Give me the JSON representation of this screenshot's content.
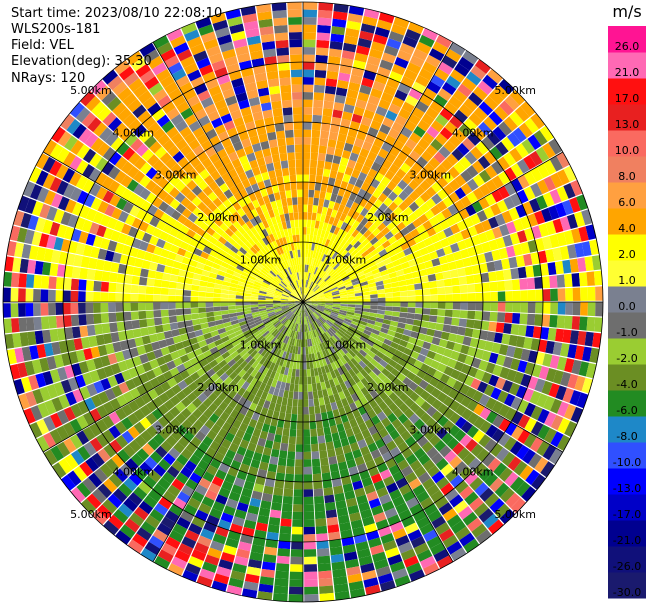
{
  "header": {
    "start_time": "Start time: 2023/08/10 22:08:10",
    "instrument": "WLS200s-181",
    "field": "Field: VEL",
    "elevation": "Elevation(deg): 35.30",
    "nrays": "NRays: 120"
  },
  "chart_data": {
    "type": "heatmap",
    "projection": "polar-ppi",
    "range_ring_labels": [
      "1.00km",
      "2.00km",
      "3.00km",
      "4.00km",
      "5.00km"
    ],
    "range_rings_km": [
      1,
      2,
      3,
      4,
      5
    ],
    "max_range_km": 5.0,
    "spoke_step_deg": 30,
    "colorbar": {
      "unit": "m/s",
      "boundaries": [
        -30.0,
        -26.0,
        -21.0,
        -17.0,
        -13.0,
        -10.0,
        -8.0,
        -6.0,
        -4.0,
        -2.0,
        -1.0,
        0.0,
        1.0,
        2.0,
        4.0,
        6.0,
        8.0,
        10.0,
        13.0,
        17.0,
        21.0,
        26.0
      ],
      "tick_labels": [
        "-30.0",
        "-26.0",
        "-21.0",
        "-17.0",
        "-13.0",
        "-10.0",
        "-8.0",
        "-6.0",
        "-4.0",
        "-2.0",
        "-1.0",
        "0.0",
        "1.0",
        "2.0",
        "4.0",
        "6.0",
        "8.0",
        "10.0",
        "13.0",
        "17.0",
        "21.0",
        "26.0"
      ],
      "colors": [
        "#1a1a6e",
        "#10107a",
        "#000090",
        "#0000c8",
        "#0000ff",
        "#3050ff",
        "#1e88c8",
        "#228b22",
        "#6b8e23",
        "#9acd32",
        "#6e6e6e",
        "#7a8090",
        "#ffff32",
        "#ffff00",
        "#ffa500",
        "#ffa040",
        "#f08060",
        "#fa6a60",
        "#e82020",
        "#ff1010",
        "#ff69b4",
        "#ff1493"
      ]
    },
    "velocity_field_description_values": {
      "near_range_north": "2.0 to 6.0",
      "near_range_south": "-6.0 to -1.0"
    }
  }
}
